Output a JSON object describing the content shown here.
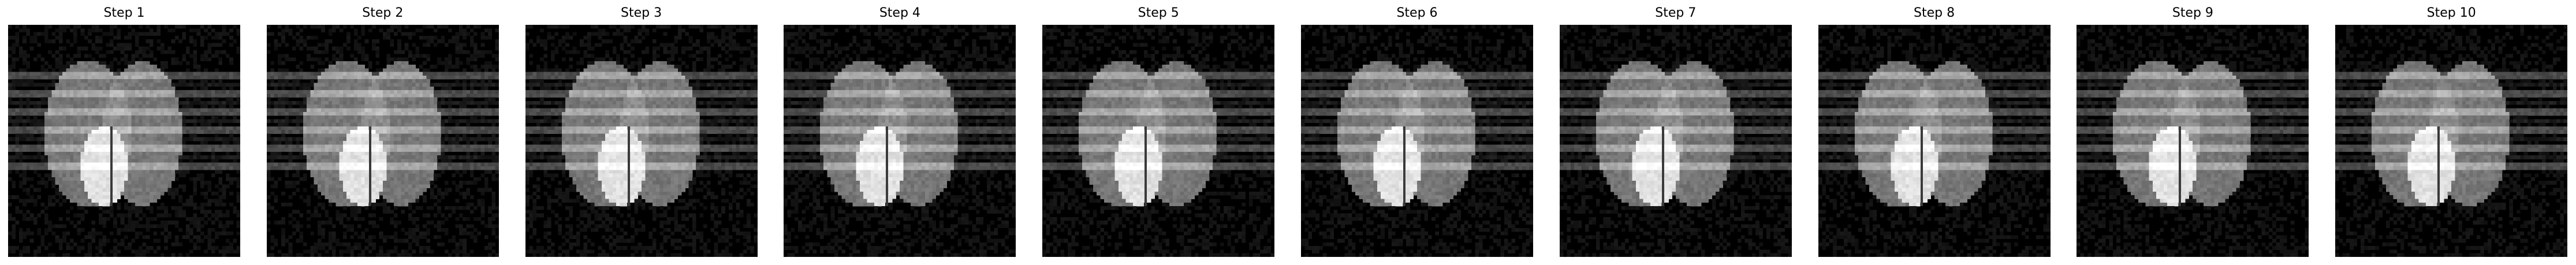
{
  "figure": {
    "panels": [
      {
        "title": "Step 1",
        "variant": 0
      },
      {
        "title": "Step 2",
        "variant": 1
      },
      {
        "title": "Step 3",
        "variant": 2
      },
      {
        "title": "Step 4",
        "variant": 3
      },
      {
        "title": "Step 5",
        "variant": 4
      },
      {
        "title": "Step 6",
        "variant": 5
      },
      {
        "title": "Step 7",
        "variant": 6
      },
      {
        "title": "Step 8",
        "variant": 7
      },
      {
        "title": "Step 9",
        "variant": 8
      },
      {
        "title": "Step 10",
        "variant": 9
      }
    ],
    "colormap": "gray",
    "background_color": "#000000",
    "ellipse_gray": "#7a7a7a",
    "ellipse_overlap_gray": "#8c8c8c",
    "bright_region_gray": "#e8e8e8",
    "stripe_gray": "#b4b4b4",
    "stripe_dark_gray": "#1c1c1c"
  }
}
